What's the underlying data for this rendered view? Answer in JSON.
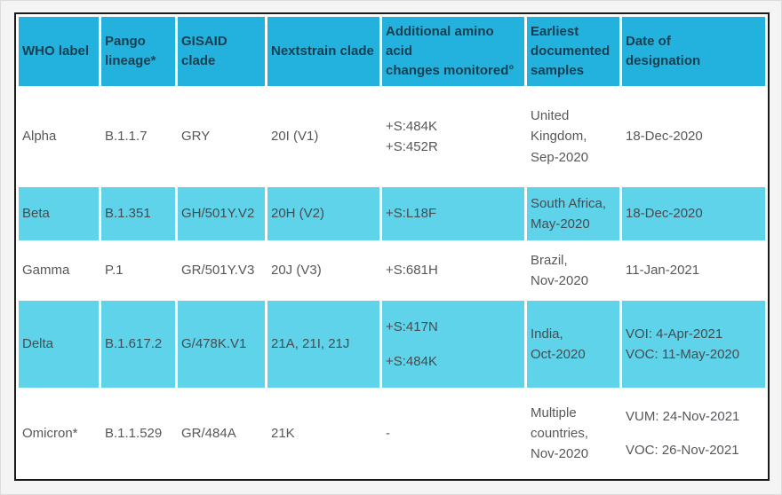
{
  "colors": {
    "page_background": "#f4f4f5",
    "header_background": "#22b2dd",
    "header_text": "#173f52",
    "row_alt_background": "#5fd3ea",
    "row_white_background": "#ffffff",
    "body_text": "#55585b",
    "table_border": "#1a1a1a"
  },
  "table": {
    "columns": [
      {
        "id": "who-label",
        "label": "WHO label"
      },
      {
        "id": "pango-lineage",
        "label": "Pango\nlineage*"
      },
      {
        "id": "gisaid-clade",
        "label": "GISAID\nclade"
      },
      {
        "id": "nextstrain-clade",
        "label": "Nextstrain clade"
      },
      {
        "id": "amino-acid-changes",
        "label": "Additional amino acid\nchanges monitored°"
      },
      {
        "id": "earliest-samples",
        "label": "Earliest\ndocumented\nsamples"
      },
      {
        "id": "date-of-designation",
        "label": "Date of\ndesignation"
      }
    ],
    "rows": [
      {
        "style": "white",
        "cells": [
          [
            "Alpha"
          ],
          [
            "B.1.1.7"
          ],
          [
            "GRY"
          ],
          [
            "20I (V1)"
          ],
          [
            "+S:484K\n+S:452R"
          ],
          [
            "United\nKingdom,\nSep-2020"
          ],
          [
            "18-Dec-2020"
          ]
        ]
      },
      {
        "style": "cyan",
        "cells": [
          [
            "Beta"
          ],
          [
            "B.1.351"
          ],
          [
            "GH/501Y.V2"
          ],
          [
            "20H (V2)"
          ],
          [
            "+S:L18F"
          ],
          [
            "South Africa,\nMay-2020"
          ],
          [
            "18-Dec-2020"
          ]
        ]
      },
      {
        "style": "white",
        "cells": [
          [
            "Gamma"
          ],
          [
            "P.1"
          ],
          [
            "GR/501Y.V3"
          ],
          [
            "20J (V3)"
          ],
          [
            "+S:681H"
          ],
          [
            "Brazil,\nNov-2020"
          ],
          [
            "11-Jan-2021"
          ]
        ]
      },
      {
        "style": "cyan",
        "cells": [
          [
            "Delta"
          ],
          [
            "B.1.617.2"
          ],
          [
            "G/478K.V1"
          ],
          [
            "21A, 21I, 21J"
          ],
          [
            "+S:417N",
            "+S:484K"
          ],
          [
            "India,\nOct-2020"
          ],
          [
            "VOI: 4-Apr-2021\nVOC: 11-May-2020"
          ]
        ]
      },
      {
        "style": "white",
        "cells": [
          [
            "Omicron*"
          ],
          [
            "B.1.1.529"
          ],
          [
            "GR/484A"
          ],
          [
            "21K"
          ],
          [
            "-"
          ],
          [
            "Multiple\ncountries,\nNov-2020"
          ],
          [
            "VUM: 24-Nov-2021",
            "VOC: 26-Nov-2021"
          ]
        ]
      }
    ]
  }
}
